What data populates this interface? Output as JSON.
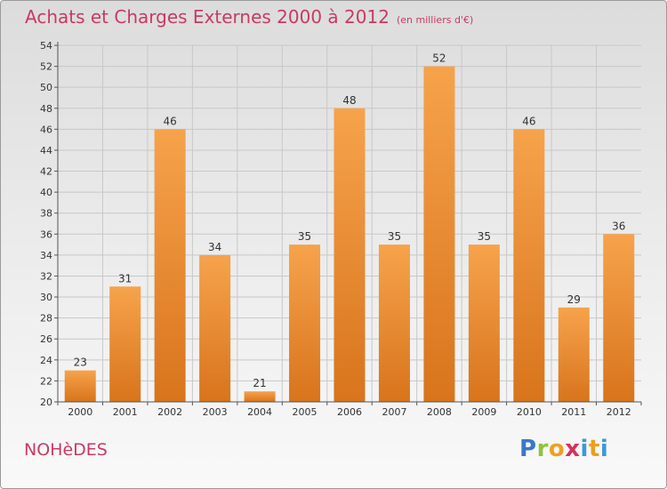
{
  "header": {
    "title": "Achats et Charges Externes 2000 à 2012",
    "unit": "(en milliers d'€)"
  },
  "footer": {
    "place": "NOHèDES",
    "brand": {
      "letters": [
        "P",
        "r",
        "o",
        "x",
        "i",
        "t",
        "i"
      ],
      "colors": [
        "#3a78c8",
        "#8fc33a",
        "#f0a020",
        "#d8305a",
        "#3a9ad8",
        "#e8a020",
        "#3a9ad8"
      ]
    }
  },
  "chart_data": {
    "type": "bar",
    "title": "Achats et Charges Externes 2000 à 2012",
    "subtitle": "(en milliers d'€)",
    "categories": [
      "2000",
      "2001",
      "2002",
      "2003",
      "2004",
      "2005",
      "2006",
      "2007",
      "2008",
      "2009",
      "2010",
      "2011",
      "2012"
    ],
    "values": [
      23,
      31,
      46,
      34,
      21,
      35,
      48,
      35,
      52,
      35,
      46,
      29,
      36
    ],
    "ylim": [
      20,
      54
    ],
    "yticks": [
      20,
      22,
      24,
      26,
      28,
      30,
      32,
      34,
      36,
      38,
      40,
      42,
      44,
      46,
      48,
      50,
      52,
      54
    ],
    "grid": true,
    "colors": {
      "bar_top": "#f6a34c",
      "bar_bottom": "#d8741c",
      "axis": "#555555",
      "grid": "#c8c8c8"
    }
  }
}
